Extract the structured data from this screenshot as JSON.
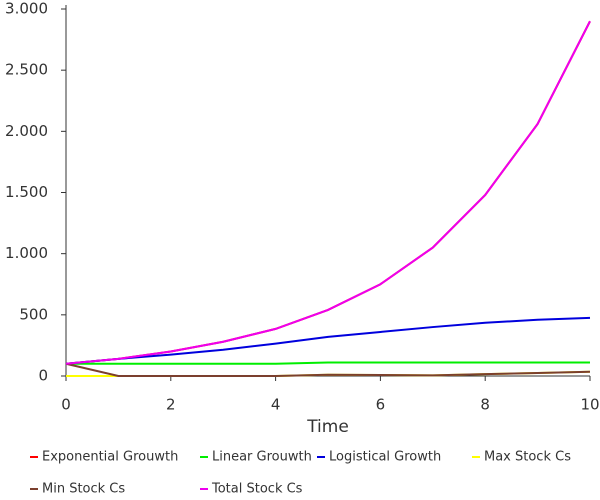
{
  "chart_data": {
    "type": "line",
    "x_label": "Time",
    "x": [
      0,
      1,
      2,
      3,
      4,
      5,
      6,
      7,
      8,
      9,
      10
    ],
    "xlim": [
      0,
      10
    ],
    "xticks": [
      0,
      2,
      4,
      6,
      8,
      10
    ],
    "ylim": [
      0,
      3000
    ],
    "yticks": [
      0,
      500,
      {
        "value": 1000,
        "label": "1.000"
      },
      {
        "value": 1500,
        "label": "1.500"
      },
      {
        "value": 2000,
        "label": "2.000"
      },
      {
        "value": 2500,
        "label": "2.500"
      },
      {
        "value": 3000,
        "label": "3.000"
      }
    ],
    "legend": "bottom",
    "series": [
      {
        "name": "Exponential Grouwth",
        "color": "#ff0000",
        "values": [
          100,
          140,
          200,
          280,
          385,
          540,
          750,
          1050,
          1480,
          2060,
          2900
        ]
      },
      {
        "name": "Linear Grouwth",
        "color": "#00ee00",
        "values": [
          100,
          100,
          100,
          100,
          100,
          110,
          110,
          110,
          110,
          110,
          110
        ]
      },
      {
        "name": "Logistical Growth",
        "color": "#0000dd",
        "values": [
          100,
          140,
          175,
          215,
          265,
          320,
          360,
          400,
          435,
          460,
          475
        ]
      },
      {
        "name": "Max Stock Cs",
        "color": "#ffff00",
        "values": [
          0,
          0,
          0,
          0,
          0,
          10,
          8,
          5,
          15,
          25,
          35
        ]
      },
      {
        "name": "Min Stock Cs",
        "color": "#7b3f2e",
        "values": [
          100,
          0,
          0,
          0,
          0,
          10,
          8,
          5,
          15,
          25,
          35
        ]
      },
      {
        "name": "Total Stock Cs",
        "color": "#ee00ee",
        "values": [
          100,
          140,
          200,
          280,
          385,
          540,
          750,
          1050,
          1480,
          2060,
          2900
        ]
      }
    ]
  }
}
